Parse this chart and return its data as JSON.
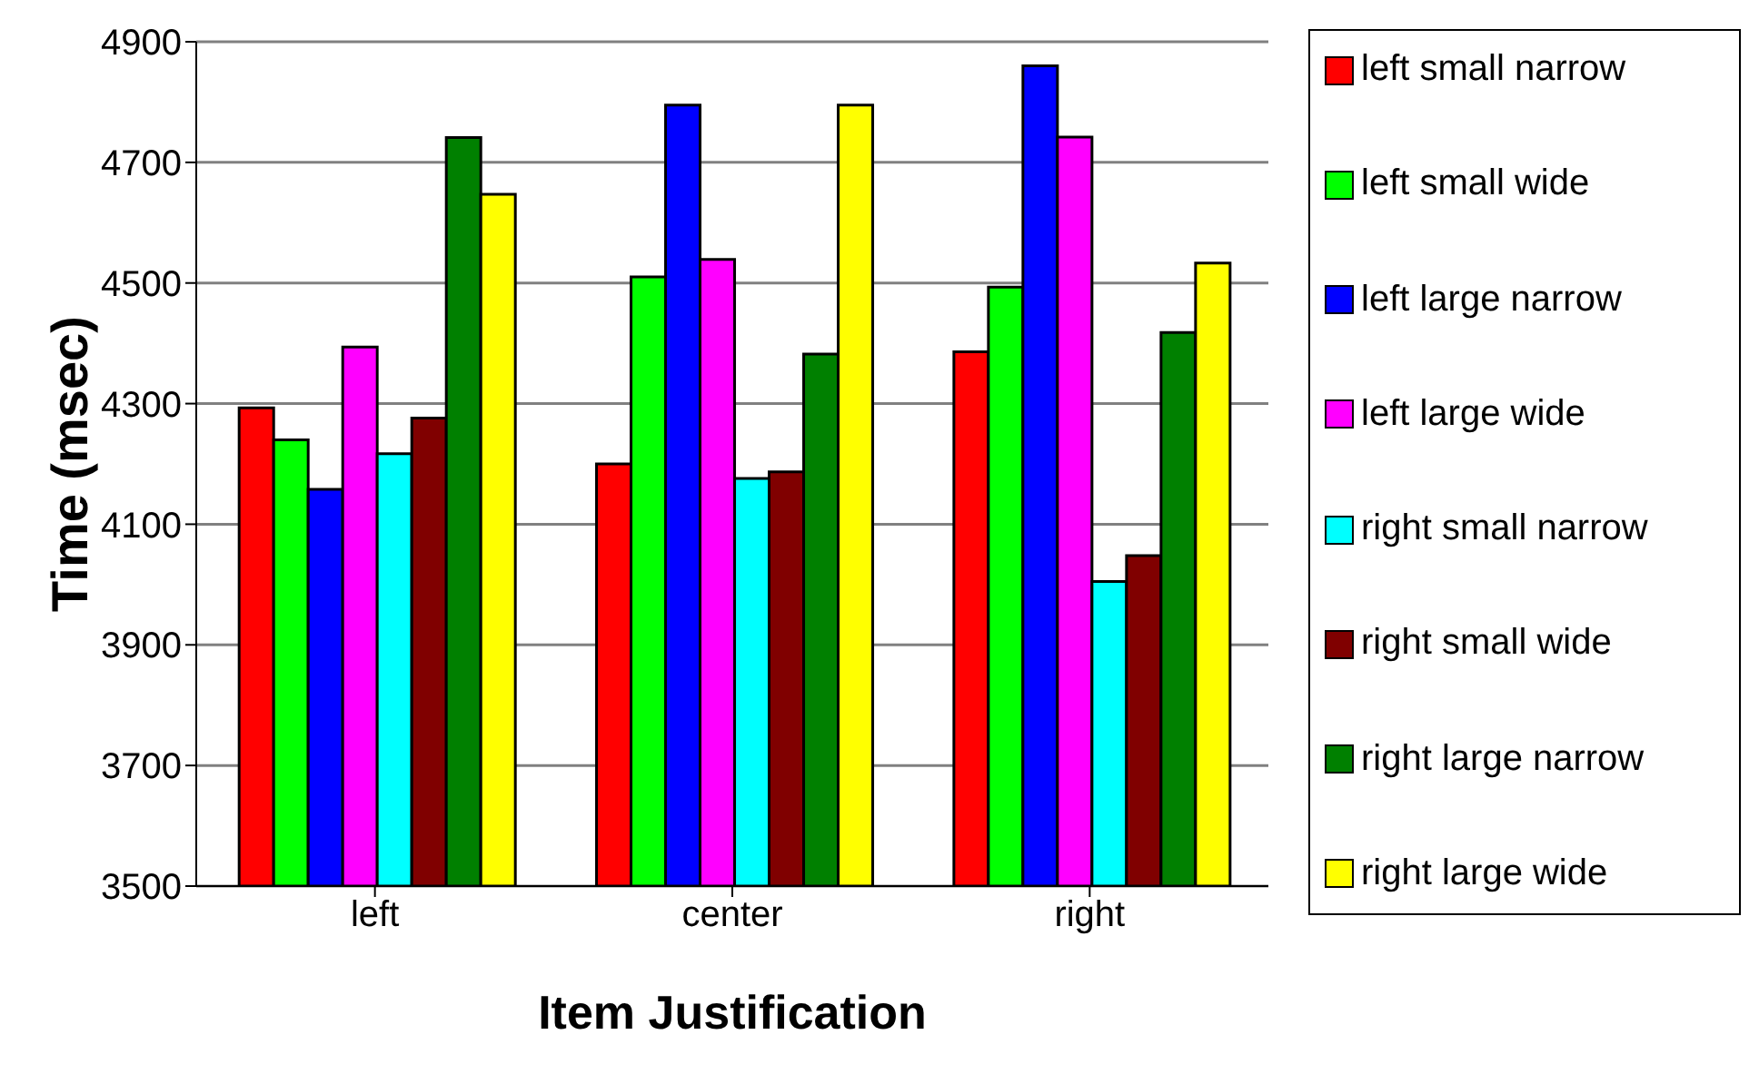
{
  "chart_data": {
    "type": "bar",
    "xlabel": "Item Justification",
    "ylabel": "Time (msec)",
    "categories": [
      "left",
      "center",
      "right"
    ],
    "series": [
      {
        "name": "left small narrow",
        "color": "#ff0000",
        "values": [
          4293,
          4200,
          4386
        ]
      },
      {
        "name": "left small wide",
        "color": "#00ff00",
        "values": [
          4240,
          4510,
          4493
        ]
      },
      {
        "name": "left large narrow",
        "color": "#0000ff",
        "values": [
          4158,
          4795,
          4860
        ]
      },
      {
        "name": "left large wide",
        "color": "#ff00ff",
        "values": [
          4394,
          4539,
          4742
        ]
      },
      {
        "name": "right small narrow",
        "color": "#00ffff",
        "values": [
          4217,
          4176,
          4005
        ]
      },
      {
        "name": "right small wide",
        "color": "#800000",
        "values": [
          4276,
          4187,
          4048
        ]
      },
      {
        "name": "right large narrow",
        "color": "#008000",
        "values": [
          4741,
          4382,
          4418
        ]
      },
      {
        "name": "right large wide",
        "color": "#ffff00",
        "values": [
          4647,
          4795,
          4533
        ]
      }
    ],
    "ylim": [
      3500,
      4900
    ],
    "yticks": [
      3500,
      3700,
      3900,
      4100,
      4300,
      4500,
      4700,
      4900
    ],
    "grid": "y",
    "legend": "right"
  }
}
